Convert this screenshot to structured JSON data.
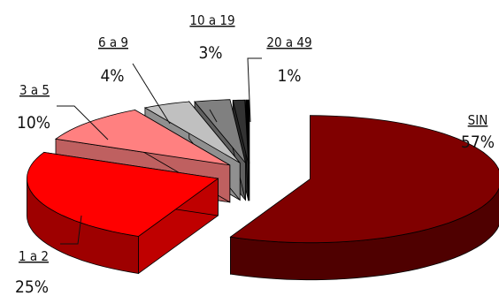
{
  "chart_data": {
    "type": "pie",
    "style": "3d-exploded",
    "legend": "none",
    "slices": [
      {
        "label": "SIN",
        "value": 57,
        "value_label": "57%",
        "color": "#800000"
      },
      {
        "label": "1 a 2",
        "value": 25,
        "value_label": "25%",
        "color": "#ff0000"
      },
      {
        "label": "3 a 5",
        "value": 10,
        "value_label": "10%",
        "color": "#ff8080"
      },
      {
        "label": "6 a 9",
        "value": 4,
        "value_label": "4%",
        "color": "#c0c0c0"
      },
      {
        "label": "10 a 19",
        "value": 3,
        "value_label": "3%",
        "color": "#808080"
      },
      {
        "label": "20 a 49",
        "value": 1,
        "value_label": "1%",
        "color": "#333333"
      },
      {
        "label": "",
        "value": 0.3,
        "value_label": "",
        "color": "#000000"
      }
    ]
  }
}
